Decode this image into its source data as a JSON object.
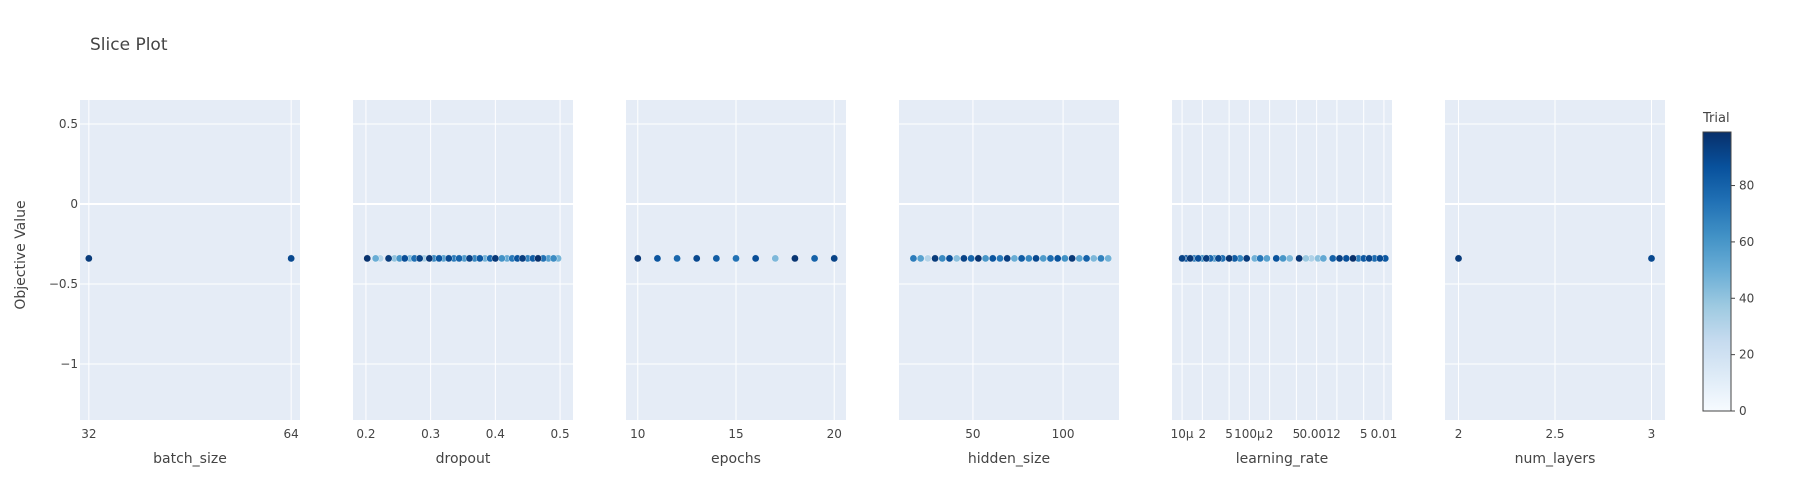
{
  "chart_data": {
    "type": "scatter",
    "title": "Slice Plot",
    "ylabel": "Objective Value",
    "ylim": [
      -1.35,
      0.65
    ],
    "y_ticks": [
      {
        "value": 0.5,
        "label": "0.5"
      },
      {
        "value": 0,
        "label": "0"
      },
      {
        "value": -0.5,
        "label": "−0.5"
      },
      {
        "value": -1,
        "label": "−1"
      }
    ],
    "colorbar": {
      "title": "Trial",
      "range": [
        0,
        99
      ],
      "ticks": [
        0,
        20,
        40,
        60,
        80
      ],
      "colorscale": [
        "#f7fbff",
        "#deebf7",
        "#c6dbef",
        "#9ecae1",
        "#6baed6",
        "#4292c6",
        "#2171b5",
        "#08519c",
        "#08306b"
      ]
    },
    "objective_value": -0.34,
    "panels": [
      {
        "param": "batch_size",
        "scale": "linear",
        "xlim": [
          30.6,
          65.4
        ],
        "ticks": [
          {
            "value": 32,
            "label": "32"
          },
          {
            "value": 64,
            "label": "64"
          }
        ],
        "points": [
          {
            "x": 32,
            "trial": 95
          },
          {
            "x": 64,
            "trial": 90
          }
        ]
      },
      {
        "param": "dropout",
        "scale": "linear",
        "xlim": [
          0.18,
          0.52
        ],
        "ticks": [
          {
            "value": 0.2,
            "label": "0.2"
          },
          {
            "value": 0.3,
            "label": "0.3"
          },
          {
            "value": 0.4,
            "label": "0.4"
          },
          {
            "value": 0.5,
            "label": "0.5"
          }
        ],
        "points": [
          {
            "x": 0.202,
            "trial": 98
          },
          {
            "x": 0.215,
            "trial": 50
          },
          {
            "x": 0.222,
            "trial": 30
          },
          {
            "x": 0.235,
            "trial": 95
          },
          {
            "x": 0.244,
            "trial": 40
          },
          {
            "x": 0.252,
            "trial": 60
          },
          {
            "x": 0.26,
            "trial": 88
          },
          {
            "x": 0.268,
            "trial": 45
          },
          {
            "x": 0.275,
            "trial": 75
          },
          {
            "x": 0.283,
            "trial": 92
          },
          {
            "x": 0.29,
            "trial": 35
          },
          {
            "x": 0.298,
            "trial": 97
          },
          {
            "x": 0.305,
            "trial": 65
          },
          {
            "x": 0.313,
            "trial": 85
          },
          {
            "x": 0.32,
            "trial": 55
          },
          {
            "x": 0.328,
            "trial": 90
          },
          {
            "x": 0.336,
            "trial": 70
          },
          {
            "x": 0.344,
            "trial": 80
          },
          {
            "x": 0.352,
            "trial": 58
          },
          {
            "x": 0.36,
            "trial": 93
          },
          {
            "x": 0.368,
            "trial": 66
          },
          {
            "x": 0.376,
            "trial": 84
          },
          {
            "x": 0.384,
            "trial": 48
          },
          {
            "x": 0.392,
            "trial": 78
          },
          {
            "x": 0.4,
            "trial": 96
          },
          {
            "x": 0.41,
            "trial": 62
          },
          {
            "x": 0.418,
            "trial": 52
          },
          {
            "x": 0.426,
            "trial": 72
          },
          {
            "x": 0.434,
            "trial": 86
          },
          {
            "x": 0.442,
            "trial": 94
          },
          {
            "x": 0.45,
            "trial": 68
          },
          {
            "x": 0.458,
            "trial": 82
          },
          {
            "x": 0.466,
            "trial": 99
          },
          {
            "x": 0.474,
            "trial": 74
          },
          {
            "x": 0.482,
            "trial": 56
          },
          {
            "x": 0.49,
            "trial": 64
          },
          {
            "x": 0.497,
            "trial": 46
          }
        ]
      },
      {
        "param": "epochs",
        "scale": "linear",
        "xlim": [
          9.4,
          20.6
        ],
        "ticks": [
          {
            "value": 10,
            "label": "10"
          },
          {
            "value": 15,
            "label": "15"
          },
          {
            "value": 20,
            "label": "20"
          }
        ],
        "points": [
          {
            "x": 10,
            "trial": 96
          },
          {
            "x": 11,
            "trial": 85
          },
          {
            "x": 12,
            "trial": 78
          },
          {
            "x": 13,
            "trial": 90
          },
          {
            "x": 14,
            "trial": 82
          },
          {
            "x": 15,
            "trial": 74
          },
          {
            "x": 16,
            "trial": 88
          },
          {
            "x": 17,
            "trial": 45
          },
          {
            "x": 18,
            "trial": 97
          },
          {
            "x": 19,
            "trial": 80
          },
          {
            "x": 20,
            "trial": 92
          }
        ]
      },
      {
        "param": "hidden_size",
        "scale": "linear",
        "xlim": [
          9,
          131
        ],
        "ticks": [
          {
            "value": 50,
            "label": "50"
          },
          {
            "value": 100,
            "label": "100"
          }
        ],
        "points": [
          {
            "x": 17,
            "trial": 70
          },
          {
            "x": 21,
            "trial": 55
          },
          {
            "x": 25,
            "trial": 30
          },
          {
            "x": 29,
            "trial": 95
          },
          {
            "x": 33,
            "trial": 65
          },
          {
            "x": 37,
            "trial": 88
          },
          {
            "x": 41,
            "trial": 42
          },
          {
            "x": 45,
            "trial": 92
          },
          {
            "x": 49,
            "trial": 78
          },
          {
            "x": 53,
            "trial": 98
          },
          {
            "x": 57,
            "trial": 60
          },
          {
            "x": 61,
            "trial": 85
          },
          {
            "x": 65,
            "trial": 72
          },
          {
            "x": 69,
            "trial": 94
          },
          {
            "x": 73,
            "trial": 50
          },
          {
            "x": 77,
            "trial": 82
          },
          {
            "x": 81,
            "trial": 66
          },
          {
            "x": 85,
            "trial": 90
          },
          {
            "x": 89,
            "trial": 58
          },
          {
            "x": 93,
            "trial": 76
          },
          {
            "x": 97,
            "trial": 86
          },
          {
            "x": 101,
            "trial": 62
          },
          {
            "x": 105,
            "trial": 96
          },
          {
            "x": 109,
            "trial": 54
          },
          {
            "x": 113,
            "trial": 80
          },
          {
            "x": 117,
            "trial": 45
          },
          {
            "x": 121,
            "trial": 68
          },
          {
            "x": 125,
            "trial": 48
          }
        ]
      },
      {
        "param": "learning_rate",
        "scale": "log",
        "xlim": [
          -5.15,
          -1.88
        ],
        "ticks": [
          {
            "value": -5,
            "label": "10μ"
          },
          {
            "value": -4.699,
            "label": "2"
          },
          {
            "value": -4.301,
            "label": "5"
          },
          {
            "value": -4,
            "label": "100μ"
          },
          {
            "value": -3.699,
            "label": "2"
          },
          {
            "value": -3.301,
            "label": "5"
          },
          {
            "value": -3,
            "label": "0.001"
          },
          {
            "value": -2.699,
            "label": "2"
          },
          {
            "value": -2.301,
            "label": "5"
          },
          {
            "value": -2,
            "label": "0.01"
          }
        ],
        "points": [
          {
            "x": -5.0,
            "trial": 92
          },
          {
            "x": -4.94,
            "trial": 85
          },
          {
            "x": -4.88,
            "trial": 96
          },
          {
            "x": -4.82,
            "trial": 70
          },
          {
            "x": -4.76,
            "trial": 88
          },
          {
            "x": -4.7,
            "trial": 62
          },
          {
            "x": -4.64,
            "trial": 94
          },
          {
            "x": -4.58,
            "trial": 78
          },
          {
            "x": -4.52,
            "trial": 58
          },
          {
            "x": -4.46,
            "trial": 90
          },
          {
            "x": -4.4,
            "trial": 75
          },
          {
            "x": -4.3,
            "trial": 98
          },
          {
            "x": -4.22,
            "trial": 82
          },
          {
            "x": -4.14,
            "trial": 66
          },
          {
            "x": -4.04,
            "trial": 95
          },
          {
            "x": -3.92,
            "trial": 48
          },
          {
            "x": -3.84,
            "trial": 72
          },
          {
            "x": -3.74,
            "trial": 55
          },
          {
            "x": -3.6,
            "trial": 86
          },
          {
            "x": -3.5,
            "trial": 60
          },
          {
            "x": -3.4,
            "trial": 45
          },
          {
            "x": -3.26,
            "trial": 97
          },
          {
            "x": -3.16,
            "trial": 38
          },
          {
            "x": -3.08,
            "trial": 32
          },
          {
            "x": -2.98,
            "trial": 42
          },
          {
            "x": -2.9,
            "trial": 52
          },
          {
            "x": -2.76,
            "trial": 80
          },
          {
            "x": -2.66,
            "trial": 93
          },
          {
            "x": -2.56,
            "trial": 87
          },
          {
            "x": -2.46,
            "trial": 99
          },
          {
            "x": -2.38,
            "trial": 70
          },
          {
            "x": -2.3,
            "trial": 83
          },
          {
            "x": -2.22,
            "trial": 91
          },
          {
            "x": -2.14,
            "trial": 76
          },
          {
            "x": -2.06,
            "trial": 89
          },
          {
            "x": -1.98,
            "trial": 84
          }
        ]
      },
      {
        "param": "num_layers",
        "scale": "linear",
        "xlim": [
          1.93,
          3.07
        ],
        "ticks": [
          {
            "value": 2,
            "label": "2"
          },
          {
            "value": 2.5,
            "label": "2.5"
          },
          {
            "value": 3,
            "label": "3"
          }
        ],
        "points": [
          {
            "x": 2,
            "trial": 95
          },
          {
            "x": 3,
            "trial": 90
          }
        ]
      }
    ]
  }
}
